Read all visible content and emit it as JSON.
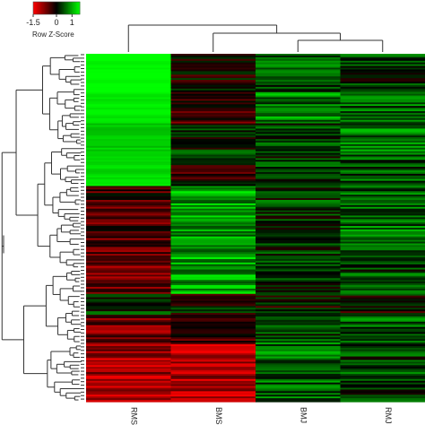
{
  "chart_data": {
    "type": "heatmap",
    "columns": [
      "RMS",
      "BMS",
      "BMJ",
      "RMJ"
    ],
    "colorscale": {
      "low_color": "#ff0000",
      "mid_color": "#000000",
      "high_color": "#00ff00",
      "range": [
        -1.5,
        1.5
      ]
    },
    "legend": {
      "title": "Row Z-Score",
      "ticks": [
        "-1.5",
        "0",
        "1"
      ],
      "tick_values": [
        -1.5,
        0,
        1
      ]
    },
    "row_count": 200,
    "column_dendrogram": "RMS | (BMS | (BMJ | RMJ))",
    "segments": [
      {
        "rows": 22,
        "values": [
          1.5,
          -0.1,
          0.5,
          0.3
        ]
      },
      {
        "rows": 18,
        "values": [
          1.4,
          -0.3,
          0.7,
          0.5
        ]
      },
      {
        "rows": 20,
        "values": [
          1.2,
          0.2,
          0.3,
          0.6
        ]
      },
      {
        "rows": 16,
        "values": [
          1.3,
          -0.2,
          0.4,
          0.4
        ]
      },
      {
        "rows": 30,
        "values": [
          -0.4,
          0.9,
          0.3,
          0.6
        ]
      },
      {
        "rows": 32,
        "values": [
          -0.6,
          1.0,
          0.2,
          0.4
        ]
      },
      {
        "rows": 12,
        "values": [
          0.2,
          0.0,
          0.0,
          0.0
        ]
      },
      {
        "rows": 16,
        "values": [
          -0.7,
          -0.3,
          0.3,
          0.5
        ]
      },
      {
        "rows": 34,
        "values": [
          -0.9,
          -1.0,
          0.6,
          0.4
        ]
      }
    ]
  }
}
